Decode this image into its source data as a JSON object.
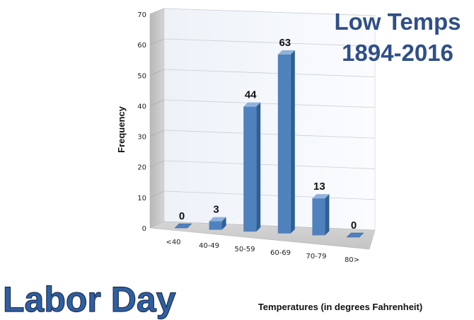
{
  "chart_data": {
    "type": "bar",
    "title_lines": [
      "Low Temps",
      "1894-2016"
    ],
    "subtitle": "Labor Day",
    "xlabel": "Temperatures (in degrees Fahrenheit)",
    "ylabel": "Frequency",
    "categories": [
      "<40",
      "40-49",
      "50-59",
      "60-69",
      "70-79",
      "80>"
    ],
    "values": [
      0,
      3,
      44,
      63,
      13,
      0
    ],
    "ylim": [
      0,
      70
    ],
    "yticks": [
      0,
      10,
      20,
      30,
      40,
      50,
      60,
      70
    ],
    "grid": true,
    "legend": "none",
    "colors": {
      "bar_front": "#4f81bd",
      "bar_side": "#2e5f96",
      "bar_top": "#8fb2dd",
      "title": "#2f4f86"
    }
  }
}
